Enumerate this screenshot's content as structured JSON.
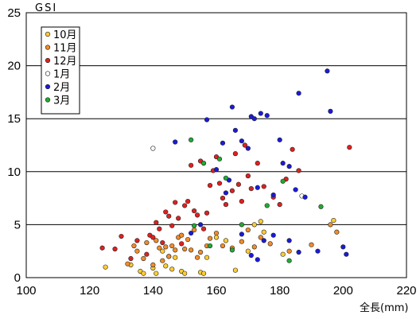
{
  "chart_data": {
    "type": "scatter",
    "ylabel": "GSI",
    "xlabel": "全長(mm)",
    "xlim": [
      100,
      220
    ],
    "ylim": [
      0,
      25
    ],
    "x_ticks": [
      100,
      120,
      140,
      160,
      180,
      200,
      220
    ],
    "y_ticks": [
      0,
      5,
      10,
      15,
      20,
      25
    ],
    "grid": "horizontal",
    "legend_position": "top-left",
    "series": [
      {
        "name": "10月",
        "color": "#ffcc33",
        "points": [
          [
            125,
            1.0
          ],
          [
            133,
            1.2
          ],
          [
            136,
            0.6
          ],
          [
            137,
            0.4
          ],
          [
            140,
            0.9
          ],
          [
            141,
            0.4
          ],
          [
            143,
            2.5
          ],
          [
            144,
            1.1
          ],
          [
            145,
            2.0
          ],
          [
            146,
            0.8
          ],
          [
            147,
            1.9
          ],
          [
            149,
            0.6
          ],
          [
            150,
            0.4
          ],
          [
            155,
            0.5
          ],
          [
            156,
            0.4
          ],
          [
            157,
            1.9
          ],
          [
            160,
            3.8
          ],
          [
            163,
            3.5
          ],
          [
            166,
            0.7
          ],
          [
            170,
            2.5
          ],
          [
            172,
            5.0
          ],
          [
            174,
            5.3
          ],
          [
            175,
            4.3
          ],
          [
            181,
            2.2
          ],
          [
            197,
            5.4
          ]
        ]
      },
      {
        "name": "11月",
        "color": "#f28c28",
        "points": [
          [
            132,
            1.3
          ],
          [
            134,
            3.0
          ],
          [
            135,
            2.5
          ],
          [
            137,
            1.8
          ],
          [
            138,
            3.3
          ],
          [
            140,
            1.2
          ],
          [
            141,
            3.5
          ],
          [
            142,
            2.8
          ],
          [
            143,
            1.6
          ],
          [
            144,
            2.9
          ],
          [
            145,
            2.0
          ],
          [
            146,
            3.0
          ],
          [
            147,
            2.6
          ],
          [
            148,
            3.8
          ],
          [
            149,
            4.0
          ],
          [
            150,
            2.7
          ],
          [
            151,
            3.6
          ],
          [
            152,
            2.6
          ],
          [
            153,
            4.5
          ],
          [
            154,
            1.9
          ],
          [
            155,
            2.4
          ],
          [
            157,
            3.0
          ],
          [
            158,
            3.7
          ],
          [
            160,
            4.2
          ],
          [
            162,
            3.0
          ],
          [
            165,
            2.8
          ],
          [
            168,
            3.4
          ],
          [
            170,
            4.5
          ],
          [
            172,
            2.9
          ],
          [
            174,
            3.8
          ],
          [
            177,
            3.2
          ],
          [
            183,
            2.5
          ],
          [
            190,
            3.1
          ],
          [
            196,
            5.0
          ],
          [
            198,
            4.3
          ]
        ]
      },
      {
        "name": "12月",
        "color": "#e02020",
        "points": [
          [
            124,
            2.8
          ],
          [
            128,
            2.7
          ],
          [
            130,
            3.9
          ],
          [
            133,
            1.8
          ],
          [
            135,
            3.5
          ],
          [
            138,
            2.2
          ],
          [
            139,
            4.0
          ],
          [
            140,
            3.8
          ],
          [
            141,
            5.2
          ],
          [
            142,
            4.6
          ],
          [
            143,
            3.3
          ],
          [
            144,
            6.2
          ],
          [
            145,
            5.8
          ],
          [
            146,
            4.9
          ],
          [
            147,
            7.1
          ],
          [
            148,
            5.6
          ],
          [
            149,
            3.2
          ],
          [
            150,
            6.8
          ],
          [
            151,
            7.2
          ],
          [
            152,
            10.6
          ],
          [
            153,
            6.3
          ],
          [
            154,
            5.9
          ],
          [
            155,
            11.0
          ],
          [
            156,
            4.6
          ],
          [
            157,
            6.1
          ],
          [
            158,
            8.7
          ],
          [
            159,
            10.1
          ],
          [
            160,
            11.4
          ],
          [
            161,
            8.9
          ],
          [
            162,
            7.5
          ],
          [
            163,
            6.9
          ],
          [
            165,
            8.2
          ],
          [
            166,
            11.7
          ],
          [
            167,
            8.8
          ],
          [
            168,
            7.2
          ],
          [
            169,
            12.5
          ],
          [
            170,
            9.6
          ],
          [
            171,
            8.4
          ],
          [
            173,
            10.8
          ],
          [
            175,
            8.6
          ],
          [
            178,
            7.6
          ],
          [
            180,
            6.9
          ],
          [
            182,
            9.3
          ],
          [
            184,
            12.1
          ],
          [
            186,
            10.1
          ],
          [
            202,
            12.3
          ]
        ]
      },
      {
        "name": "1月",
        "color": "#ffffff",
        "points": [
          [
            140,
            12.2
          ],
          [
            187,
            7.7
          ]
        ]
      },
      {
        "name": "2月",
        "color": "#1a1adc",
        "points": [
          [
            147,
            12.8
          ],
          [
            152,
            4.2
          ],
          [
            155,
            5.0
          ],
          [
            157,
            14.9
          ],
          [
            160,
            10.2
          ],
          [
            162,
            12.7
          ],
          [
            163,
            8.0
          ],
          [
            164,
            9.2
          ],
          [
            165,
            16.1
          ],
          [
            166,
            13.9
          ],
          [
            168,
            12.9
          ],
          [
            170,
            12.2
          ],
          [
            171,
            15.2
          ],
          [
            172,
            15.0
          ],
          [
            173,
            8.5
          ],
          [
            174,
            15.5
          ],
          [
            175,
            3.5
          ],
          [
            176,
            15.3
          ],
          [
            178,
            7.8
          ],
          [
            180,
            13.0
          ],
          [
            181,
            10.8
          ],
          [
            183,
            10.5
          ],
          [
            185,
            8.3
          ],
          [
            186,
            17.4
          ],
          [
            188,
            7.6
          ],
          [
            192,
            2.5
          ],
          [
            195,
            19.5
          ],
          [
            196,
            15.7
          ],
          [
            200,
            2.9
          ],
          [
            201,
            2.2
          ],
          [
            168,
            4.1
          ],
          [
            171,
            2.1
          ],
          [
            173,
            1.7
          ],
          [
            178,
            4.0
          ],
          [
            183,
            3.5
          ],
          [
            186,
            2.4
          ]
        ]
      },
      {
        "name": "3月",
        "color": "#22aa33",
        "points": [
          [
            152,
            13.0
          ],
          [
            153,
            4.9
          ],
          [
            156,
            10.8
          ],
          [
            158,
            3.0
          ],
          [
            161,
            11.2
          ],
          [
            163,
            9.4
          ],
          [
            165,
            2.6
          ],
          [
            168,
            5.0
          ],
          [
            176,
            6.8
          ],
          [
            181,
            9.1
          ],
          [
            183,
            1.6
          ],
          [
            193,
            6.7
          ]
        ]
      }
    ]
  }
}
